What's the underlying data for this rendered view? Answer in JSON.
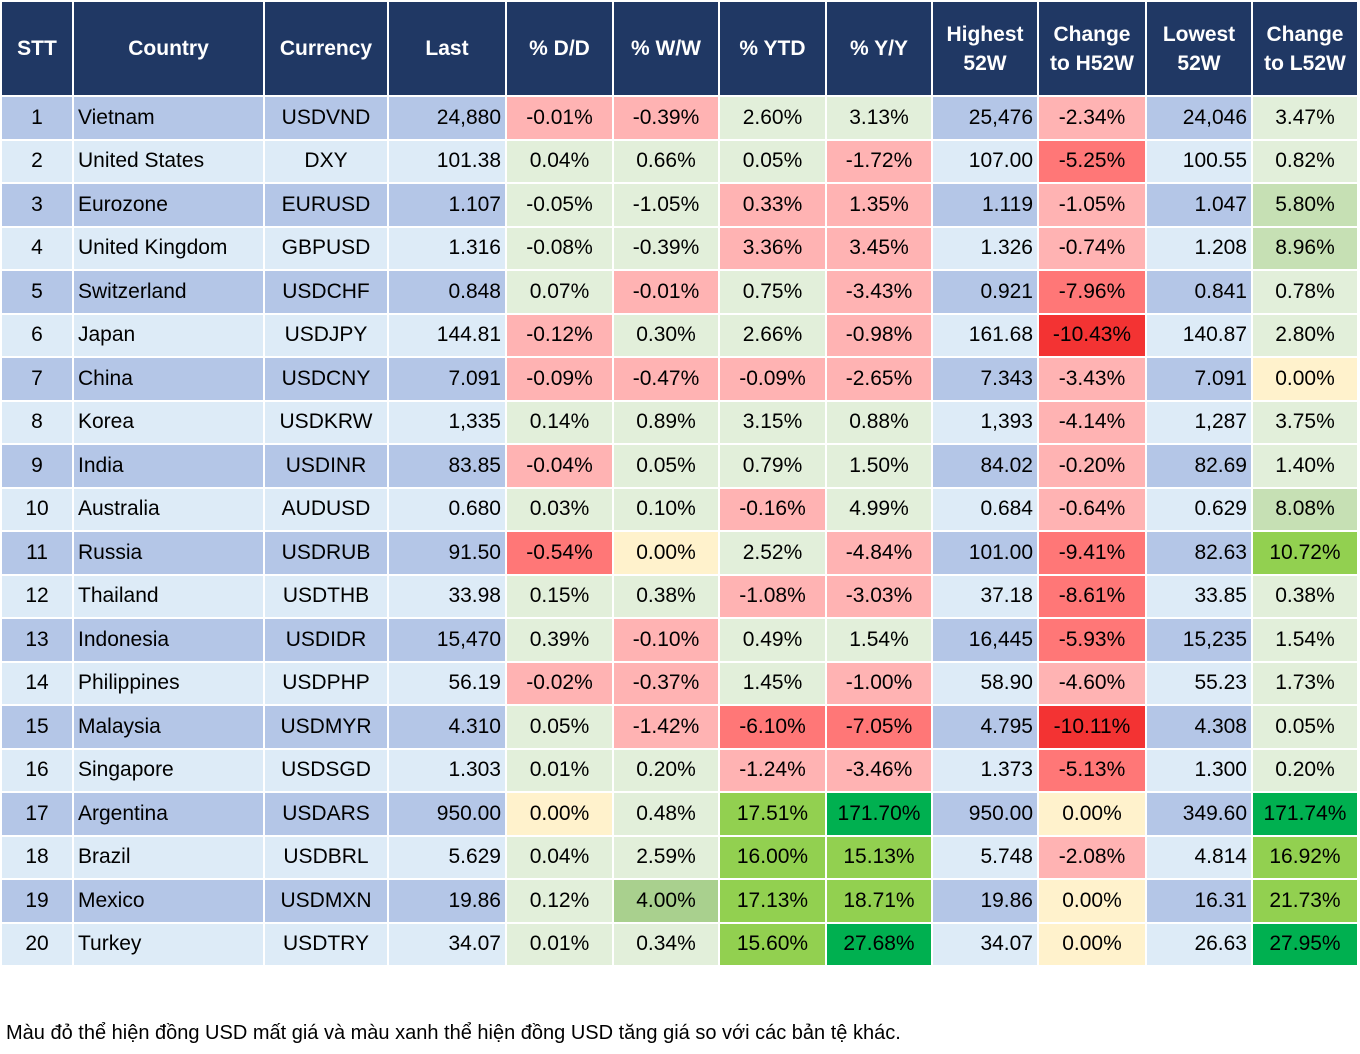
{
  "headers": [
    "STT",
    "Country",
    "Currency",
    "Last",
    "% D/D",
    "% W/W",
    "% YTD",
    "% Y/Y",
    "Highest 52W",
    "Change to H52W",
    "Lowest 52W",
    "Change to L52W"
  ],
  "palette": {
    "lr": "#ffb3b3",
    "r": "#ff7777",
    "dr": "#f33333",
    "lg": "#e2efda",
    "mg": "#c6e0b4",
    "mg2": "#a9d08e",
    "g": "#92d050",
    "dg": "#00b050",
    "y": "#fff2cc"
  },
  "rows": [
    {
      "stt": "1",
      "country": "Vietnam",
      "currency": "USDVND",
      "last": "24,880",
      "dd": "-0.01%",
      "ww": "-0.39%",
      "ytd": "2.60%",
      "yy": "3.13%",
      "h52": "25,476",
      "ch": "-2.34%",
      "l52": "24,046",
      "cl": "3.47%",
      "colors": [
        "lr",
        "lr",
        "lg",
        "lg",
        "lr",
        "lg"
      ]
    },
    {
      "stt": "2",
      "country": "United States",
      "currency": "DXY",
      "last": "101.38",
      "dd": "0.04%",
      "ww": "0.66%",
      "ytd": "0.05%",
      "yy": "-1.72%",
      "h52": "107.00",
      "ch": "-5.25%",
      "l52": "100.55",
      "cl": "0.82%",
      "colors": [
        "lg",
        "lg",
        "lg",
        "lr",
        "r",
        "lg"
      ]
    },
    {
      "stt": "3",
      "country": "Eurozone",
      "currency": "EURUSD",
      "last": "1.107",
      "dd": "-0.05%",
      "ww": "-1.05%",
      "ytd": "0.33%",
      "yy": "1.35%",
      "h52": "1.119",
      "ch": "-1.05%",
      "l52": "1.047",
      "cl": "5.80%",
      "colors": [
        "lg",
        "lg",
        "lr",
        "lr",
        "lr",
        "mg"
      ]
    },
    {
      "stt": "4",
      "country": "United Kingdom",
      "currency": "GBPUSD",
      "last": "1.316",
      "dd": "-0.08%",
      "ww": "-0.39%",
      "ytd": "3.36%",
      "yy": "3.45%",
      "h52": "1.326",
      "ch": "-0.74%",
      "l52": "1.208",
      "cl": "8.96%",
      "colors": [
        "lg",
        "lg",
        "lr",
        "lr",
        "lr",
        "mg"
      ]
    },
    {
      "stt": "5",
      "country": "Switzerland",
      "currency": "USDCHF",
      "last": "0.848",
      "dd": "0.07%",
      "ww": "-0.01%",
      "ytd": "0.75%",
      "yy": "-3.43%",
      "h52": "0.921",
      "ch": "-7.96%",
      "l52": "0.841",
      "cl": "0.78%",
      "colors": [
        "lg",
        "lr",
        "lg",
        "lr",
        "r",
        "lg"
      ]
    },
    {
      "stt": "6",
      "country": "Japan",
      "currency": "USDJPY",
      "last": "144.81",
      "dd": "-0.12%",
      "ww": "0.30%",
      "ytd": "2.66%",
      "yy": "-0.98%",
      "h52": "161.68",
      "ch": "-10.43%",
      "l52": "140.87",
      "cl": "2.80%",
      "colors": [
        "lr",
        "lg",
        "lg",
        "lr",
        "dr",
        "lg"
      ]
    },
    {
      "stt": "7",
      "country": "China",
      "currency": "USDCNY",
      "last": "7.091",
      "dd": "-0.09%",
      "ww": "-0.47%",
      "ytd": "-0.09%",
      "yy": "-2.65%",
      "h52": "7.343",
      "ch": "-3.43%",
      "l52": "7.091",
      "cl": "0.00%",
      "colors": [
        "lr",
        "lr",
        "lr",
        "lr",
        "lr",
        "y"
      ]
    },
    {
      "stt": "8",
      "country": "Korea",
      "currency": "USDKRW",
      "last": "1,335",
      "dd": "0.14%",
      "ww": "0.89%",
      "ytd": "3.15%",
      "yy": "0.88%",
      "h52": "1,393",
      "ch": "-4.14%",
      "l52": "1,287",
      "cl": "3.75%",
      "colors": [
        "lg",
        "lg",
        "lg",
        "lg",
        "lr",
        "lg"
      ]
    },
    {
      "stt": "9",
      "country": "India",
      "currency": "USDINR",
      "last": "83.85",
      "dd": "-0.04%",
      "ww": "0.05%",
      "ytd": "0.79%",
      "yy": "1.50%",
      "h52": "84.02",
      "ch": "-0.20%",
      "l52": "82.69",
      "cl": "1.40%",
      "colors": [
        "lr",
        "lg",
        "lg",
        "lg",
        "lr",
        "lg"
      ]
    },
    {
      "stt": "10",
      "country": "Australia",
      "currency": "AUDUSD",
      "last": "0.680",
      "dd": "0.03%",
      "ww": "0.10%",
      "ytd": "-0.16%",
      "yy": "4.99%",
      "h52": "0.684",
      "ch": "-0.64%",
      "l52": "0.629",
      "cl": "8.08%",
      "colors": [
        "lg",
        "lg",
        "lr",
        "lg",
        "lr",
        "mg"
      ]
    },
    {
      "stt": "11",
      "country": "Russia",
      "currency": "USDRUB",
      "last": "91.50",
      "dd": "-0.54%",
      "ww": "0.00%",
      "ytd": "2.52%",
      "yy": "-4.84%",
      "h52": "101.00",
      "ch": "-9.41%",
      "l52": "82.63",
      "cl": "10.72%",
      "colors": [
        "r",
        "y",
        "lg",
        "lr",
        "r",
        "g"
      ]
    },
    {
      "stt": "12",
      "country": "Thailand",
      "currency": "USDTHB",
      "last": "33.98",
      "dd": "0.15%",
      "ww": "0.38%",
      "ytd": "-1.08%",
      "yy": "-3.03%",
      "h52": "37.18",
      "ch": "-8.61%",
      "l52": "33.85",
      "cl": "0.38%",
      "colors": [
        "lg",
        "lg",
        "lr",
        "lr",
        "r",
        "lg"
      ]
    },
    {
      "stt": "13",
      "country": "Indonesia",
      "currency": "USDIDR",
      "last": "15,470",
      "dd": "0.39%",
      "ww": "-0.10%",
      "ytd": "0.49%",
      "yy": "1.54%",
      "h52": "16,445",
      "ch": "-5.93%",
      "l52": "15,235",
      "cl": "1.54%",
      "colors": [
        "lg",
        "lr",
        "lg",
        "lg",
        "r",
        "lg"
      ]
    },
    {
      "stt": "14",
      "country": "Philippines",
      "currency": "USDPHP",
      "last": "56.19",
      "dd": "-0.02%",
      "ww": "-0.37%",
      "ytd": "1.45%",
      "yy": "-1.00%",
      "h52": "58.90",
      "ch": "-4.60%",
      "l52": "55.23",
      "cl": "1.73%",
      "colors": [
        "lr",
        "lr",
        "lg",
        "lr",
        "lr",
        "lg"
      ]
    },
    {
      "stt": "15",
      "country": "Malaysia",
      "currency": "USDMYR",
      "last": "4.310",
      "dd": "0.05%",
      "ww": "-1.42%",
      "ytd": "-6.10%",
      "yy": "-7.05%",
      "h52": "4.795",
      "ch": "-10.11%",
      "l52": "4.308",
      "cl": "0.05%",
      "colors": [
        "lg",
        "lr",
        "r",
        "r",
        "dr",
        "lg"
      ]
    },
    {
      "stt": "16",
      "country": "Singapore",
      "currency": "USDSGD",
      "last": "1.303",
      "dd": "0.01%",
      "ww": "0.20%",
      "ytd": "-1.24%",
      "yy": "-3.46%",
      "h52": "1.373",
      "ch": "-5.13%",
      "l52": "1.300",
      "cl": "0.20%",
      "colors": [
        "lg",
        "lg",
        "lr",
        "lr",
        "r",
        "lg"
      ]
    },
    {
      "stt": "17",
      "country": "Argentina",
      "currency": "USDARS",
      "last": "950.00",
      "dd": "0.00%",
      "ww": "0.48%",
      "ytd": "17.51%",
      "yy": "171.70%",
      "h52": "950.00",
      "ch": "0.00%",
      "l52": "349.60",
      "cl": "171.74%",
      "colors": [
        "y",
        "lg",
        "g",
        "dg",
        "y",
        "dg"
      ]
    },
    {
      "stt": "18",
      "country": "Brazil",
      "currency": "USDBRL",
      "last": "5.629",
      "dd": "0.04%",
      "ww": "2.59%",
      "ytd": "16.00%",
      "yy": "15.13%",
      "h52": "5.748",
      "ch": "-2.08%",
      "l52": "4.814",
      "cl": "16.92%",
      "colors": [
        "lg",
        "lg",
        "g",
        "g",
        "lr",
        "g"
      ]
    },
    {
      "stt": "19",
      "country": "Mexico",
      "currency": "USDMXN",
      "last": "19.86",
      "dd": "0.12%",
      "ww": "4.00%",
      "ytd": "17.13%",
      "yy": "18.71%",
      "h52": "19.86",
      "ch": "0.00%",
      "l52": "16.31",
      "cl": "21.73%",
      "colors": [
        "lg",
        "mg2",
        "g",
        "g",
        "y",
        "g"
      ]
    },
    {
      "stt": "20",
      "country": "Turkey",
      "currency": "USDTRY",
      "last": "34.07",
      "dd": "0.01%",
      "ww": "0.34%",
      "ytd": "15.60%",
      "yy": "27.68%",
      "h52": "34.07",
      "ch": "0.00%",
      "l52": "26.63",
      "cl": "27.95%",
      "colors": [
        "lg",
        "lg",
        "g",
        "dg",
        "y",
        "dg"
      ]
    }
  ],
  "footnote": "Màu đỏ thể hiện đồng USD mất giá và màu xanh thể hiện đồng USD tăng giá so với các bản tệ khác."
}
